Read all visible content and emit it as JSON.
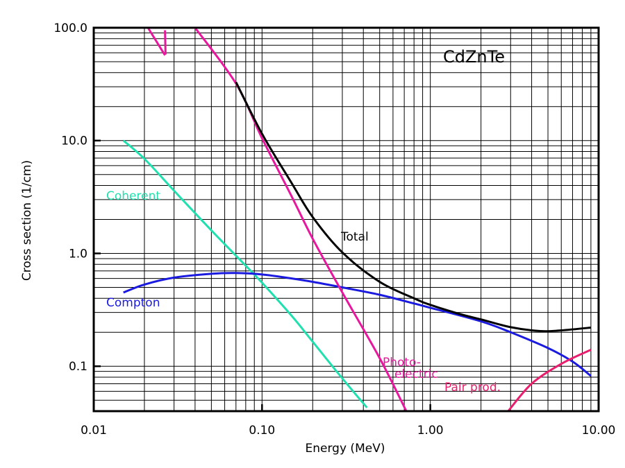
{
  "chart_data": {
    "type": "line",
    "title": "",
    "annotation": "CdZnTe",
    "xlabel": "Energy (MeV)",
    "ylabel": "Cross section (1/cm)",
    "x_scale": "log",
    "y_scale": "log",
    "xlim": [
      0.01,
      10.0
    ],
    "ylim": [
      0.04,
      100.0
    ],
    "x_ticks": [
      {
        "value": 0.01,
        "label": "0.01"
      },
      {
        "value": 0.1,
        "label": "0.10"
      },
      {
        "value": 1.0,
        "label": "1.00"
      },
      {
        "value": 10.0,
        "label": "10.00"
      }
    ],
    "y_ticks": [
      {
        "value": 0.1,
        "label": "0.1"
      },
      {
        "value": 1.0,
        "label": "1.0"
      },
      {
        "value": 10.0,
        "label": "10.0"
      },
      {
        "value": 100.0,
        "label": "100.0"
      }
    ],
    "grid": true,
    "series": [
      {
        "name": "Coherent",
        "color": "#20e0b0",
        "points": [
          [
            0.015,
            10.0
          ],
          [
            0.02,
            6.9
          ],
          [
            0.03,
            3.6
          ],
          [
            0.05,
            1.6
          ],
          [
            0.08,
            0.78
          ],
          [
            0.1,
            0.55
          ],
          [
            0.15,
            0.28
          ],
          [
            0.2,
            0.165
          ],
          [
            0.3,
            0.078
          ],
          [
            0.42,
            0.043
          ]
        ]
      },
      {
        "name": "Compton",
        "color": "#1a1ae0",
        "points": [
          [
            0.015,
            0.45
          ],
          [
            0.02,
            0.53
          ],
          [
            0.03,
            0.61
          ],
          [
            0.05,
            0.66
          ],
          [
            0.07,
            0.67
          ],
          [
            0.1,
            0.65
          ],
          [
            0.15,
            0.6
          ],
          [
            0.2,
            0.56
          ],
          [
            0.3,
            0.5
          ],
          [
            0.5,
            0.43
          ],
          [
            0.8,
            0.36
          ],
          [
            1.0,
            0.33
          ],
          [
            2.0,
            0.25
          ],
          [
            3.0,
            0.2
          ],
          [
            5.0,
            0.145
          ],
          [
            7.0,
            0.11
          ],
          [
            9.0,
            0.082
          ]
        ]
      },
      {
        "name": "Photo-electric",
        "label_lines": [
          "Photo-",
          "electric"
        ],
        "color": "#e8179e",
        "segments": [
          [
            [
              0.021,
              100.0
            ],
            [
              0.0265,
              57.0
            ]
          ],
          [
            [
              0.0265,
              95.0
            ],
            [
              0.0267,
              58.0
            ]
          ],
          [
            [
              0.04,
              100.0
            ],
            [
              0.07,
              32.0
            ],
            [
              0.1,
              10.5
            ],
            [
              0.15,
              3.2
            ],
            [
              0.2,
              1.35
            ],
            [
              0.3,
              0.45
            ],
            [
              0.5,
              0.118
            ],
            [
              0.72,
              0.04
            ]
          ]
        ]
      },
      {
        "name": "Pair prod.",
        "color": "#e81f6e",
        "points": [
          [
            2.9,
            0.04
          ],
          [
            4.0,
            0.07
          ],
          [
            6.0,
            0.105
          ],
          [
            9.0,
            0.14
          ]
        ]
      },
      {
        "name": "Total",
        "color": "#000000",
        "points": [
          [
            0.07,
            33.0
          ],
          [
            0.1,
            11.5
          ],
          [
            0.15,
            4.2
          ],
          [
            0.2,
            2.1
          ],
          [
            0.3,
            1.02
          ],
          [
            0.5,
            0.56
          ],
          [
            0.8,
            0.4
          ],
          [
            1.0,
            0.35
          ],
          [
            1.5,
            0.29
          ],
          [
            2.0,
            0.26
          ],
          [
            3.0,
            0.222
          ],
          [
            4.5,
            0.205
          ],
          [
            6.0,
            0.208
          ],
          [
            9.0,
            0.22
          ]
        ]
      }
    ]
  }
}
